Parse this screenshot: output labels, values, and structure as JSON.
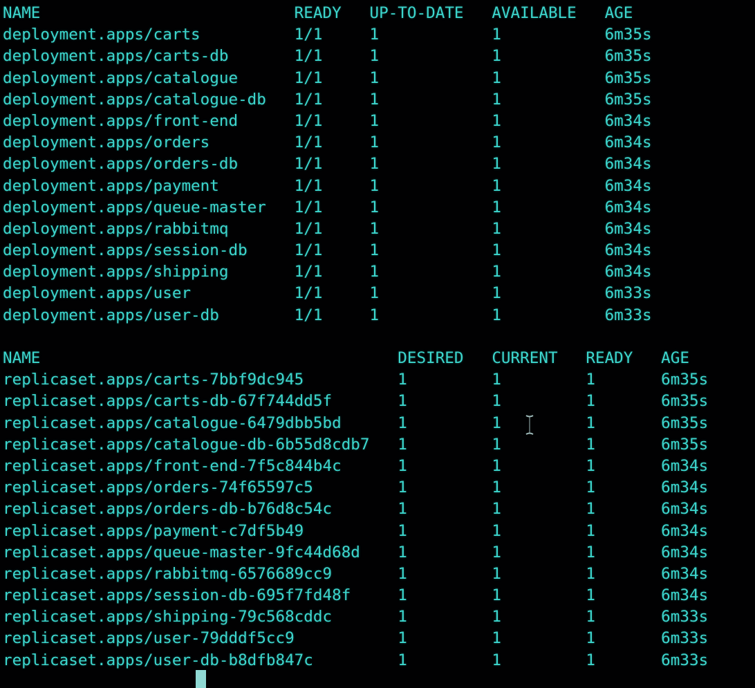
{
  "terminal": {
    "colors": {
      "background": "#010102",
      "text": "#3cd6cd",
      "cursor": "#8fd9d4",
      "pointer": "#9db9b8"
    }
  },
  "tables": [
    {
      "id": "deployments",
      "columns": [
        {
          "label": "NAME",
          "ch": 0
        },
        {
          "label": "READY",
          "ch": 31
        },
        {
          "label": "UP-TO-DATE",
          "ch": 39
        },
        {
          "label": "AVAILABLE",
          "ch": 52
        },
        {
          "label": "AGE",
          "ch": 64
        }
      ],
      "rows": [
        {
          "cells": [
            "deployment.apps/carts",
            "1/1",
            "1",
            "1",
            "6m35s"
          ]
        },
        {
          "cells": [
            "deployment.apps/carts-db",
            "1/1",
            "1",
            "1",
            "6m35s"
          ]
        },
        {
          "cells": [
            "deployment.apps/catalogue",
            "1/1",
            "1",
            "1",
            "6m35s"
          ]
        },
        {
          "cells": [
            "deployment.apps/catalogue-db",
            "1/1",
            "1",
            "1",
            "6m35s"
          ]
        },
        {
          "cells": [
            "deployment.apps/front-end",
            "1/1",
            "1",
            "1",
            "6m34s"
          ]
        },
        {
          "cells": [
            "deployment.apps/orders",
            "1/1",
            "1",
            "1",
            "6m34s"
          ]
        },
        {
          "cells": [
            "deployment.apps/orders-db",
            "1/1",
            "1",
            "1",
            "6m34s"
          ]
        },
        {
          "cells": [
            "deployment.apps/payment",
            "1/1",
            "1",
            "1",
            "6m34s"
          ]
        },
        {
          "cells": [
            "deployment.apps/queue-master",
            "1/1",
            "1",
            "1",
            "6m34s"
          ]
        },
        {
          "cells": [
            "deployment.apps/rabbitmq",
            "1/1",
            "1",
            "1",
            "6m34s"
          ]
        },
        {
          "cells": [
            "deployment.apps/session-db",
            "1/1",
            "1",
            "1",
            "6m34s"
          ]
        },
        {
          "cells": [
            "deployment.apps/shipping",
            "1/1",
            "1",
            "1",
            "6m34s"
          ]
        },
        {
          "cells": [
            "deployment.apps/user",
            "1/1",
            "1",
            "1",
            "6m33s"
          ]
        },
        {
          "cells": [
            "deployment.apps/user-db",
            "1/1",
            "1",
            "1",
            "6m33s"
          ]
        }
      ]
    },
    {
      "id": "replicasets",
      "columns": [
        {
          "label": "NAME",
          "ch": 0
        },
        {
          "label": "DESIRED",
          "ch": 42
        },
        {
          "label": "CURRENT",
          "ch": 52
        },
        {
          "label": "READY",
          "ch": 62
        },
        {
          "label": "AGE",
          "ch": 70
        }
      ],
      "rows": [
        {
          "cells": [
            "replicaset.apps/carts-7bbf9dc945",
            "1",
            "1",
            "1",
            "6m35s"
          ]
        },
        {
          "cells": [
            "replicaset.apps/carts-db-67f744dd5f",
            "1",
            "1",
            "1",
            "6m35s"
          ]
        },
        {
          "cells": [
            "replicaset.apps/catalogue-6479dbb5bd",
            "1",
            "1",
            "1",
            "6m35s"
          ]
        },
        {
          "cells": [
            "replicaset.apps/catalogue-db-6b55d8cdb7",
            "1",
            "1",
            "1",
            "6m35s"
          ]
        },
        {
          "cells": [
            "replicaset.apps/front-end-7f5c844b4c",
            "1",
            "1",
            "1",
            "6m34s"
          ]
        },
        {
          "cells": [
            "replicaset.apps/orders-74f65597c5",
            "1",
            "1",
            "1",
            "6m34s"
          ]
        },
        {
          "cells": [
            "replicaset.apps/orders-db-b76d8c54c",
            "1",
            "1",
            "1",
            "6m34s"
          ]
        },
        {
          "cells": [
            "replicaset.apps/payment-c7df5b49",
            "1",
            "1",
            "1",
            "6m34s"
          ]
        },
        {
          "cells": [
            "replicaset.apps/queue-master-9fc44d68d",
            "1",
            "1",
            "1",
            "6m34s"
          ]
        },
        {
          "cells": [
            "replicaset.apps/rabbitmq-6576689cc9",
            "1",
            "1",
            "1",
            "6m34s"
          ]
        },
        {
          "cells": [
            "replicaset.apps/session-db-695f7fd48f",
            "1",
            "1",
            "1",
            "6m34s"
          ]
        },
        {
          "cells": [
            "replicaset.apps/shipping-79c568cddc",
            "1",
            "1",
            "1",
            "6m33s"
          ]
        },
        {
          "cells": [
            "replicaset.apps/user-79dddf5cc9",
            "1",
            "1",
            "1",
            "6m33s"
          ]
        },
        {
          "cells": [
            "replicaset.apps/user-db-b8dfb847c",
            "1",
            "1",
            "1",
            "6m33s"
          ]
        }
      ]
    }
  ]
}
